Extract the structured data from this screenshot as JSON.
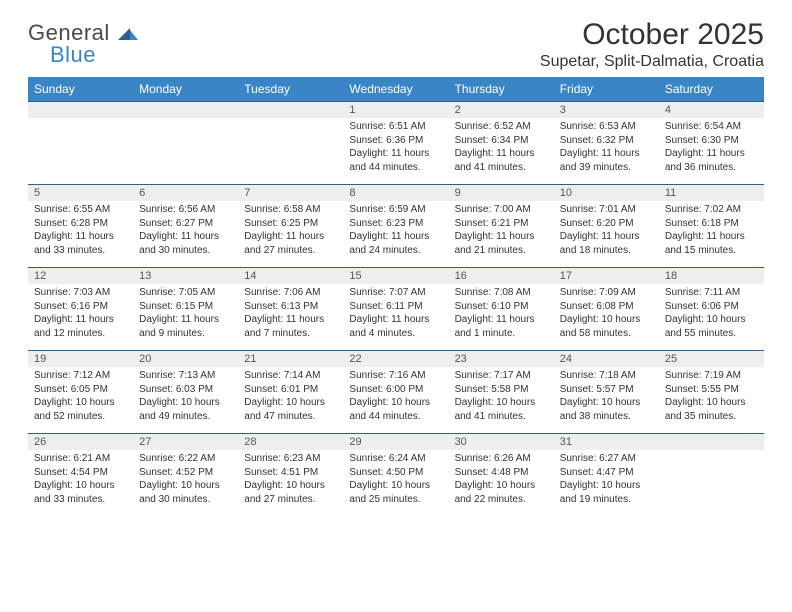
{
  "logo": {
    "text1": "General",
    "text2": "Blue"
  },
  "title": "October 2025",
  "location": "Supetar, Split-Dalmatia, Croatia",
  "colors": {
    "header_bg": "#3a85c6",
    "header_text": "#ffffff",
    "numrow_bg": "#eeeeee",
    "numrow_border": "#2e5e8a",
    "body_text": "#333333",
    "logo_gray": "#4a4a4a",
    "logo_blue": "#3a85c6"
  },
  "fonts": {
    "title_size_pt": 22,
    "location_size_pt": 12,
    "dayhead_size_pt": 9,
    "daynum_size_pt": 8.5,
    "cell_size_pt": 7.5
  },
  "day_names": [
    "Sunday",
    "Monday",
    "Tuesday",
    "Wednesday",
    "Thursday",
    "Friday",
    "Saturday"
  ],
  "weeks": [
    {
      "nums": [
        "",
        "",
        "",
        "1",
        "2",
        "3",
        "4"
      ],
      "cells": [
        null,
        null,
        null,
        {
          "sunrise": "Sunrise: 6:51 AM",
          "sunset": "Sunset: 6:36 PM",
          "daylight": "Daylight: 11 hours and 44 minutes."
        },
        {
          "sunrise": "Sunrise: 6:52 AM",
          "sunset": "Sunset: 6:34 PM",
          "daylight": "Daylight: 11 hours and 41 minutes."
        },
        {
          "sunrise": "Sunrise: 6:53 AM",
          "sunset": "Sunset: 6:32 PM",
          "daylight": "Daylight: 11 hours and 39 minutes."
        },
        {
          "sunrise": "Sunrise: 6:54 AM",
          "sunset": "Sunset: 6:30 PM",
          "daylight": "Daylight: 11 hours and 36 minutes."
        }
      ]
    },
    {
      "nums": [
        "5",
        "6",
        "7",
        "8",
        "9",
        "10",
        "11"
      ],
      "cells": [
        {
          "sunrise": "Sunrise: 6:55 AM",
          "sunset": "Sunset: 6:28 PM",
          "daylight": "Daylight: 11 hours and 33 minutes."
        },
        {
          "sunrise": "Sunrise: 6:56 AM",
          "sunset": "Sunset: 6:27 PM",
          "daylight": "Daylight: 11 hours and 30 minutes."
        },
        {
          "sunrise": "Sunrise: 6:58 AM",
          "sunset": "Sunset: 6:25 PM",
          "daylight": "Daylight: 11 hours and 27 minutes."
        },
        {
          "sunrise": "Sunrise: 6:59 AM",
          "sunset": "Sunset: 6:23 PM",
          "daylight": "Daylight: 11 hours and 24 minutes."
        },
        {
          "sunrise": "Sunrise: 7:00 AM",
          "sunset": "Sunset: 6:21 PM",
          "daylight": "Daylight: 11 hours and 21 minutes."
        },
        {
          "sunrise": "Sunrise: 7:01 AM",
          "sunset": "Sunset: 6:20 PM",
          "daylight": "Daylight: 11 hours and 18 minutes."
        },
        {
          "sunrise": "Sunrise: 7:02 AM",
          "sunset": "Sunset: 6:18 PM",
          "daylight": "Daylight: 11 hours and 15 minutes."
        }
      ]
    },
    {
      "nums": [
        "12",
        "13",
        "14",
        "15",
        "16",
        "17",
        "18"
      ],
      "cells": [
        {
          "sunrise": "Sunrise: 7:03 AM",
          "sunset": "Sunset: 6:16 PM",
          "daylight": "Daylight: 11 hours and 12 minutes."
        },
        {
          "sunrise": "Sunrise: 7:05 AM",
          "sunset": "Sunset: 6:15 PM",
          "daylight": "Daylight: 11 hours and 9 minutes."
        },
        {
          "sunrise": "Sunrise: 7:06 AM",
          "sunset": "Sunset: 6:13 PM",
          "daylight": "Daylight: 11 hours and 7 minutes."
        },
        {
          "sunrise": "Sunrise: 7:07 AM",
          "sunset": "Sunset: 6:11 PM",
          "daylight": "Daylight: 11 hours and 4 minutes."
        },
        {
          "sunrise": "Sunrise: 7:08 AM",
          "sunset": "Sunset: 6:10 PM",
          "daylight": "Daylight: 11 hours and 1 minute."
        },
        {
          "sunrise": "Sunrise: 7:09 AM",
          "sunset": "Sunset: 6:08 PM",
          "daylight": "Daylight: 10 hours and 58 minutes."
        },
        {
          "sunrise": "Sunrise: 7:11 AM",
          "sunset": "Sunset: 6:06 PM",
          "daylight": "Daylight: 10 hours and 55 minutes."
        }
      ]
    },
    {
      "nums": [
        "19",
        "20",
        "21",
        "22",
        "23",
        "24",
        "25"
      ],
      "cells": [
        {
          "sunrise": "Sunrise: 7:12 AM",
          "sunset": "Sunset: 6:05 PM",
          "daylight": "Daylight: 10 hours and 52 minutes."
        },
        {
          "sunrise": "Sunrise: 7:13 AM",
          "sunset": "Sunset: 6:03 PM",
          "daylight": "Daylight: 10 hours and 49 minutes."
        },
        {
          "sunrise": "Sunrise: 7:14 AM",
          "sunset": "Sunset: 6:01 PM",
          "daylight": "Daylight: 10 hours and 47 minutes."
        },
        {
          "sunrise": "Sunrise: 7:16 AM",
          "sunset": "Sunset: 6:00 PM",
          "daylight": "Daylight: 10 hours and 44 minutes."
        },
        {
          "sunrise": "Sunrise: 7:17 AM",
          "sunset": "Sunset: 5:58 PM",
          "daylight": "Daylight: 10 hours and 41 minutes."
        },
        {
          "sunrise": "Sunrise: 7:18 AM",
          "sunset": "Sunset: 5:57 PM",
          "daylight": "Daylight: 10 hours and 38 minutes."
        },
        {
          "sunrise": "Sunrise: 7:19 AM",
          "sunset": "Sunset: 5:55 PM",
          "daylight": "Daylight: 10 hours and 35 minutes."
        }
      ]
    },
    {
      "nums": [
        "26",
        "27",
        "28",
        "29",
        "30",
        "31",
        ""
      ],
      "cells": [
        {
          "sunrise": "Sunrise: 6:21 AM",
          "sunset": "Sunset: 4:54 PM",
          "daylight": "Daylight: 10 hours and 33 minutes."
        },
        {
          "sunrise": "Sunrise: 6:22 AM",
          "sunset": "Sunset: 4:52 PM",
          "daylight": "Daylight: 10 hours and 30 minutes."
        },
        {
          "sunrise": "Sunrise: 6:23 AM",
          "sunset": "Sunset: 4:51 PM",
          "daylight": "Daylight: 10 hours and 27 minutes."
        },
        {
          "sunrise": "Sunrise: 6:24 AM",
          "sunset": "Sunset: 4:50 PM",
          "daylight": "Daylight: 10 hours and 25 minutes."
        },
        {
          "sunrise": "Sunrise: 6:26 AM",
          "sunset": "Sunset: 4:48 PM",
          "daylight": "Daylight: 10 hours and 22 minutes."
        },
        {
          "sunrise": "Sunrise: 6:27 AM",
          "sunset": "Sunset: 4:47 PM",
          "daylight": "Daylight: 10 hours and 19 minutes."
        },
        null
      ]
    }
  ]
}
